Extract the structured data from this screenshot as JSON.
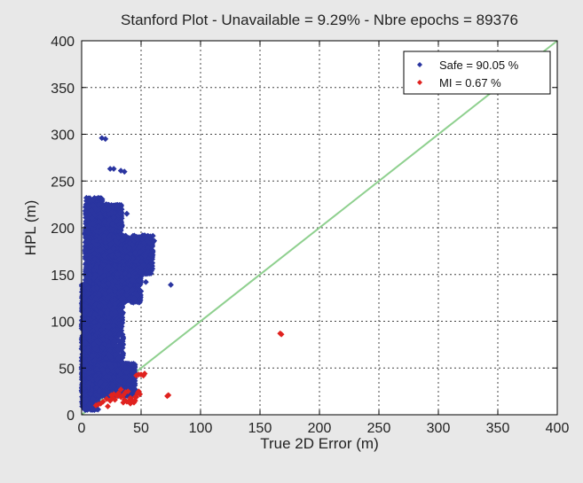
{
  "chart_data": {
    "type": "scatter",
    "title": "Stanford Plot - Unavailable = 9.29% - Nbre epochs = 89376",
    "xlabel": "True 2D Error (m)",
    "ylabel": "HPL (m)",
    "xlim": [
      0,
      400
    ],
    "ylim": [
      0,
      400
    ],
    "x_ticks": [
      "0",
      "50",
      "100",
      "150",
      "200",
      "250",
      "300",
      "350",
      "400"
    ],
    "y_ticks": [
      "0",
      "50",
      "100",
      "150",
      "200",
      "250",
      "300",
      "350",
      "400"
    ],
    "grid": true,
    "legend_position": "top-right",
    "reference_line": {
      "from": [
        0,
        0
      ],
      "to": [
        400,
        400
      ],
      "color": "#8fd08f"
    },
    "series": [
      {
        "name": "Safe = 90.05 %",
        "color": "#2a35a0",
        "regions": [
          {
            "x": [
              0,
              3
            ],
            "y": [
              8,
              140
            ]
          },
          {
            "x": [
              2,
              14
            ],
            "y": [
              5,
              135
            ]
          },
          {
            "x": [
              3,
              18
            ],
            "y": [
              120,
              232
            ]
          },
          {
            "x": [
              5,
              34
            ],
            "y": [
              180,
              225
            ]
          },
          {
            "x": [
              10,
              60
            ],
            "y": [
              150,
              192
            ]
          },
          {
            "x": [
              10,
              50
            ],
            "y": [
              120,
              160
            ]
          },
          {
            "x": [
              10,
              35
            ],
            "y": [
              40,
              120
            ]
          },
          {
            "x": [
              12,
              45
            ],
            "y": [
              20,
              55
            ]
          }
        ],
        "points": [
          [
            17,
            296
          ],
          [
            20,
            295
          ],
          [
            24,
            263
          ],
          [
            27,
            263
          ],
          [
            33,
            261
          ],
          [
            36,
            260
          ],
          [
            38,
            215
          ],
          [
            46,
            188
          ],
          [
            58,
            184
          ],
          [
            61,
            186
          ],
          [
            54,
            142
          ],
          [
            75,
            139
          ],
          [
            4,
            232
          ],
          [
            6,
            229
          ],
          [
            50,
            158
          ],
          [
            52,
            160
          ],
          [
            45,
            173
          ],
          [
            40,
            178
          ]
        ]
      },
      {
        "name": "MI = 0.67 %",
        "color": "#e0221f",
        "points": [
          [
            12,
            10
          ],
          [
            14,
            11
          ],
          [
            18,
            14
          ],
          [
            21,
            17
          ],
          [
            24,
            15
          ],
          [
            26,
            18
          ],
          [
            28,
            16
          ],
          [
            30,
            20
          ],
          [
            31,
            23
          ],
          [
            33,
            19
          ],
          [
            35,
            21
          ],
          [
            36,
            16
          ],
          [
            38,
            14
          ],
          [
            40,
            15
          ],
          [
            41,
            12
          ],
          [
            42,
            14
          ],
          [
            44,
            13
          ],
          [
            45,
            15
          ],
          [
            46,
            19
          ],
          [
            47,
            23
          ],
          [
            48,
            25
          ],
          [
            49,
            22
          ],
          [
            46,
            42
          ],
          [
            48,
            43
          ],
          [
            50,
            43
          ],
          [
            52,
            42
          ],
          [
            53,
            44
          ],
          [
            72,
            20
          ],
          [
            73,
            21
          ],
          [
            167,
            87
          ],
          [
            168,
            86
          ],
          [
            39,
            25
          ],
          [
            37,
            24
          ],
          [
            33,
            27
          ],
          [
            27,
            22
          ],
          [
            45,
            19
          ],
          [
            41,
            18
          ],
          [
            42,
            16
          ],
          [
            35,
            13
          ],
          [
            22,
            9
          ],
          [
            16,
            12
          ],
          [
            25,
            21
          ]
        ]
      }
    ]
  }
}
